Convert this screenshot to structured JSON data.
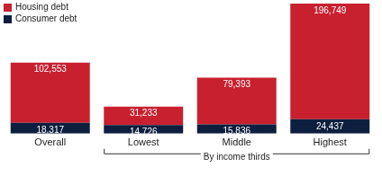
{
  "chart_data": {
    "type": "bar",
    "stacked": true,
    "data_labels": true,
    "tick_labels": "x",
    "grid": false,
    "legend": "top-left",
    "categories": [
      "Overall",
      "Lowest",
      "Middle",
      "Highest"
    ],
    "series": [
      {
        "name": "Housing debt",
        "color": "#c8202f",
        "values": [
          102553,
          31233,
          79393,
          196749
        ],
        "value_labels": [
          "102,553",
          "31,233",
          "79,393",
          "196,749"
        ]
      },
      {
        "name": "Consumer debt",
        "color": "#0e1e3e",
        "values": [
          18317,
          14726,
          15836,
          24437
        ],
        "value_labels": [
          "18,317",
          "14,726",
          "15,836",
          "24,437"
        ]
      }
    ],
    "annotations": [
      {
        "text": "By income thirds",
        "from": "Lowest",
        "to": "Highest"
      }
    ]
  }
}
